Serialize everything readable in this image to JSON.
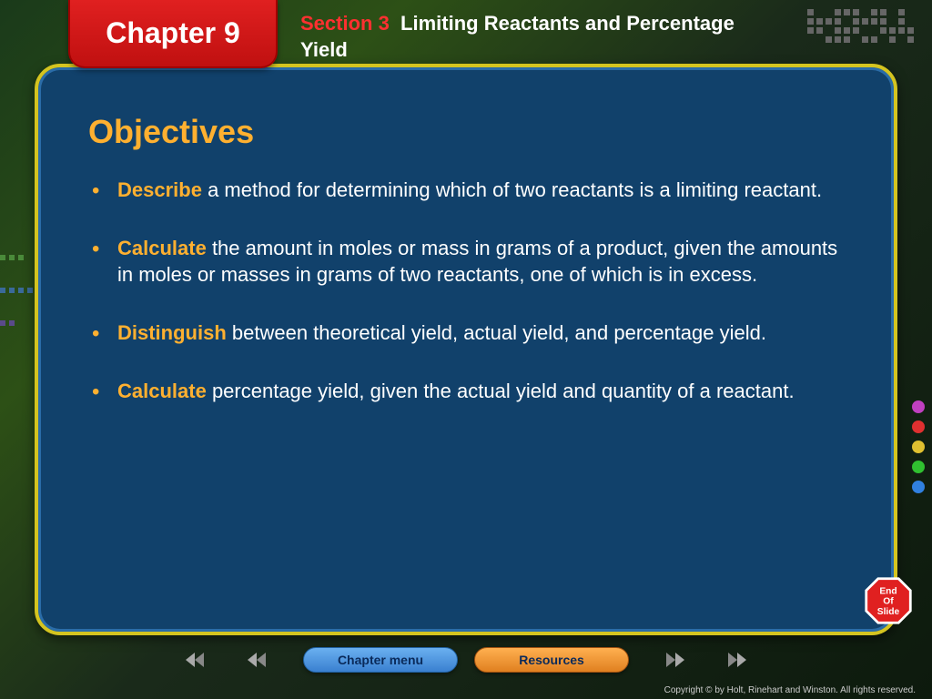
{
  "chapter": {
    "label": "Chapter 9"
  },
  "section": {
    "prefix": "Section 3",
    "title": "Limiting Reactants and Percentage Yield"
  },
  "slide": {
    "title": "Objectives",
    "bullets": [
      {
        "keyword": "Describe",
        "rest": " a method for determining which of two reactants is a limiting reactant."
      },
      {
        "keyword": "Calculate",
        "rest": " the amount in moles or mass in grams of a product, given the amounts in moles or masses in grams of two reactants, one of which is in excess."
      },
      {
        "keyword": "Distinguish",
        "rest": " between theoretical yield, actual yield, and percentage yield."
      },
      {
        "keyword": "Calculate",
        "rest": " percentage yield, given the actual yield and quantity of a reactant."
      }
    ]
  },
  "endOfSlide": {
    "line1": "End",
    "line2": "Of",
    "line3": "Slide"
  },
  "nav": {
    "chapterMenu": "Chapter menu",
    "resources": "Resources"
  },
  "copyright": "Copyright © by Holt, Rinehart and Winston. All rights reserved.",
  "colors": {
    "accent": "#ffb030",
    "panel": "#11416b",
    "border": "#d4c420",
    "leftSquares": [
      "#4a8a3a",
      "#3a6a9a",
      "#5a4a8a"
    ],
    "rightDots": [
      "#c040c0",
      "#e03030",
      "#e0c030",
      "#30c030",
      "#3080e0"
    ]
  }
}
